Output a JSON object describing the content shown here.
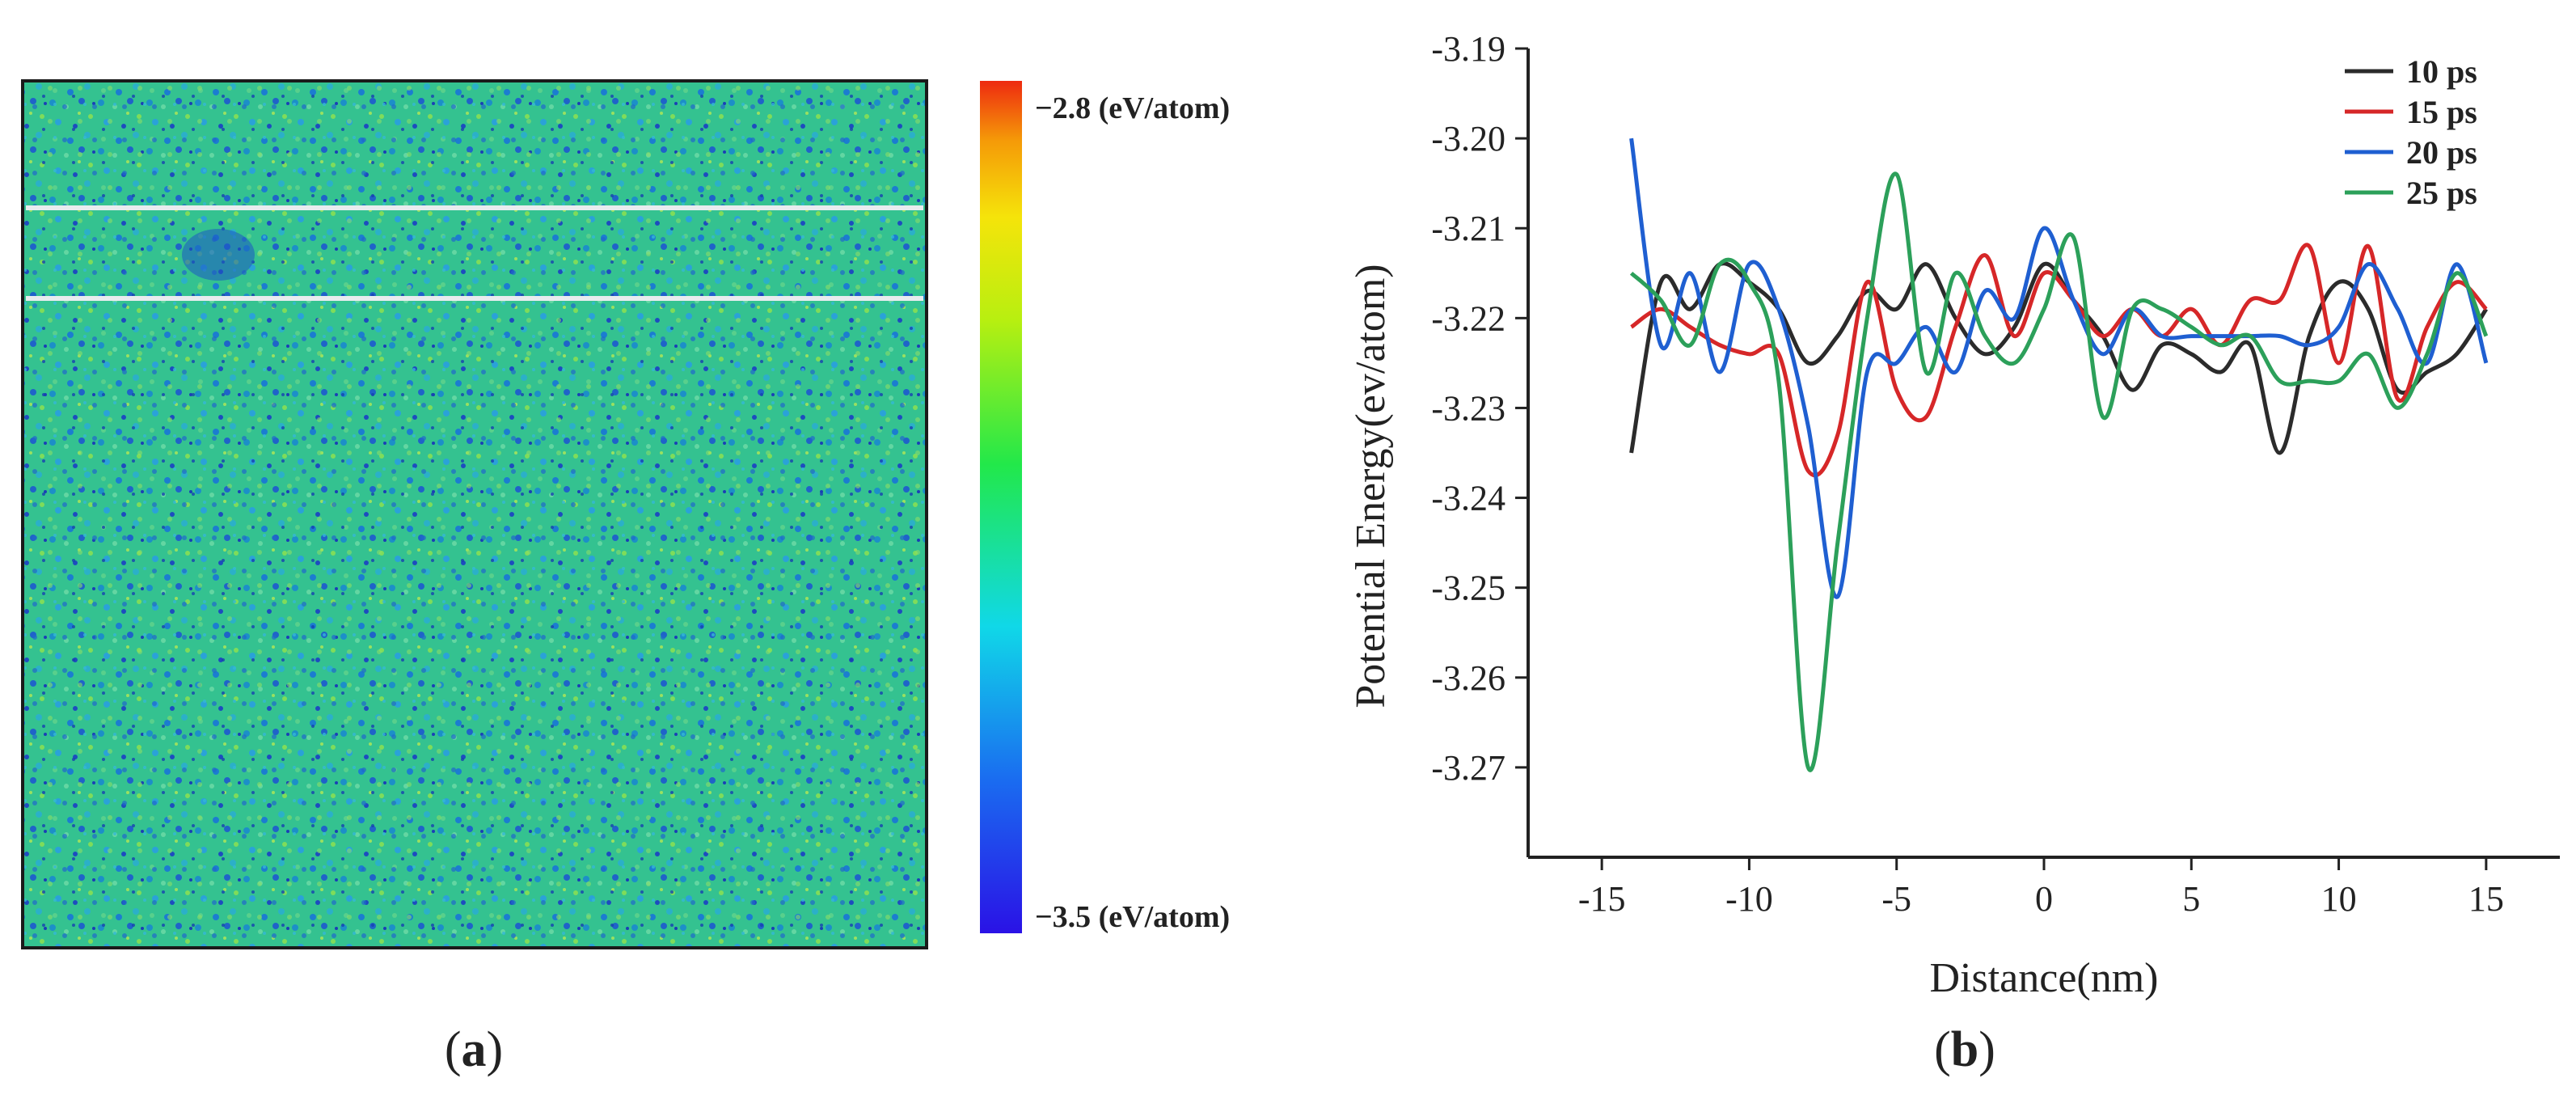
{
  "panels": {
    "a": {
      "label_open": "(",
      "label_letter": "a",
      "label_close": ")",
      "colorbar_max_label": "−2.8 (eV/atom)",
      "colorbar_min_label": "−3.5 (eV/atom)",
      "colorbar_range": [
        -3.5,
        -2.8
      ],
      "map_base_color": "#2fbf8f"
    },
    "b": {
      "label_open": "(",
      "label_letter": "b",
      "label_close": ")"
    }
  },
  "chart_data": {
    "type": "line",
    "title": "",
    "xlabel": "Distance(nm)",
    "ylabel": "Potential Energy(ev/atom)",
    "xlim": [
      -17.5,
      17.5
    ],
    "ylim": [
      -3.28,
      -3.19
    ],
    "x_ticks": [
      -15,
      -10,
      -5,
      0,
      5,
      10,
      15
    ],
    "x_tick_labels": [
      "-15",
      "-10",
      "-5",
      "0",
      "5",
      "10",
      "15"
    ],
    "y_ticks": [
      -3.19,
      -3.2,
      -3.21,
      -3.22,
      -3.23,
      -3.24,
      -3.25,
      -3.26,
      -3.27
    ],
    "y_tick_labels": [
      "-3.19",
      "-3.20",
      "-3.21",
      "-3.22",
      "-3.23",
      "-3.24",
      "-3.25",
      "-3.26",
      "-3.27"
    ],
    "legend_position": "top-right",
    "series": [
      {
        "name": "10 ps",
        "color": "#2b2b2b",
        "x": [
          -14,
          -13,
          -12,
          -11,
          -10,
          -9,
          -8,
          -7,
          -6,
          -5,
          -4,
          -3,
          -2,
          -1,
          0,
          1,
          2,
          3,
          4,
          5,
          6,
          7,
          8,
          9,
          10,
          11,
          12,
          13,
          14,
          15
        ],
        "y": [
          -3.235,
          -3.216,
          -3.219,
          -3.214,
          -3.216,
          -3.219,
          -3.225,
          -3.222,
          -3.217,
          -3.219,
          -3.214,
          -3.22,
          -3.224,
          -3.221,
          -3.214,
          -3.218,
          -3.222,
          -3.228,
          -3.223,
          -3.224,
          -3.226,
          -3.223,
          -3.235,
          -3.222,
          -3.216,
          -3.219,
          -3.228,
          -3.226,
          -3.224,
          -3.219
        ]
      },
      {
        "name": "15 ps",
        "color": "#d62728",
        "x": [
          -14,
          -13,
          -12,
          -11,
          -10,
          -9,
          -8,
          -7,
          -6,
          -5,
          -4,
          -3,
          -2,
          -1,
          0,
          1,
          2,
          3,
          4,
          5,
          6,
          7,
          8,
          9,
          10,
          11,
          12,
          13,
          14,
          15
        ],
        "y": [
          -3.221,
          -3.219,
          -3.221,
          -3.223,
          -3.224,
          -3.224,
          -3.237,
          -3.233,
          -3.216,
          -3.228,
          -3.231,
          -3.221,
          -3.213,
          -3.222,
          -3.215,
          -3.218,
          -3.222,
          -3.219,
          -3.222,
          -3.219,
          -3.223,
          -3.218,
          -3.218,
          -3.212,
          -3.225,
          -3.212,
          -3.229,
          -3.221,
          -3.216,
          -3.219
        ]
      },
      {
        "name": "20 ps",
        "color": "#1f5fd1",
        "x": [
          -14,
          -13,
          -12,
          -11,
          -10,
          -9,
          -8,
          -7,
          -6,
          -5,
          -4,
          -3,
          -2,
          -1,
          0,
          1,
          2,
          3,
          4,
          5,
          6,
          7,
          8,
          9,
          10,
          11,
          12,
          13,
          14,
          15
        ],
        "y": [
          -3.2,
          -3.223,
          -3.215,
          -3.226,
          -3.214,
          -3.219,
          -3.232,
          -3.251,
          -3.226,
          -3.225,
          -3.221,
          -3.226,
          -3.217,
          -3.22,
          -3.21,
          -3.218,
          -3.224,
          -3.219,
          -3.222,
          -3.222,
          -3.222,
          -3.222,
          -3.222,
          -3.223,
          -3.221,
          -3.214,
          -3.219,
          -3.225,
          -3.214,
          -3.225
        ]
      },
      {
        "name": "25 ps",
        "color": "#2ca05a",
        "x": [
          -14,
          -13,
          -12,
          -11,
          -10,
          -9,
          -8,
          -7,
          -6,
          -5,
          -4,
          -3,
          -2,
          -1,
          0,
          1,
          2,
          3,
          4,
          5,
          6,
          7,
          8,
          9,
          10,
          11,
          12,
          13,
          14,
          15
        ],
        "y": [
          -3.215,
          -3.218,
          -3.223,
          -3.214,
          -3.216,
          -3.227,
          -3.27,
          -3.245,
          -3.22,
          -3.204,
          -3.226,
          -3.215,
          -3.222,
          -3.225,
          -3.219,
          -3.211,
          -3.231,
          -3.219,
          -3.219,
          -3.221,
          -3.223,
          -3.222,
          -3.227,
          -3.227,
          -3.227,
          -3.224,
          -3.23,
          -3.224,
          -3.215,
          -3.222
        ]
      }
    ]
  }
}
